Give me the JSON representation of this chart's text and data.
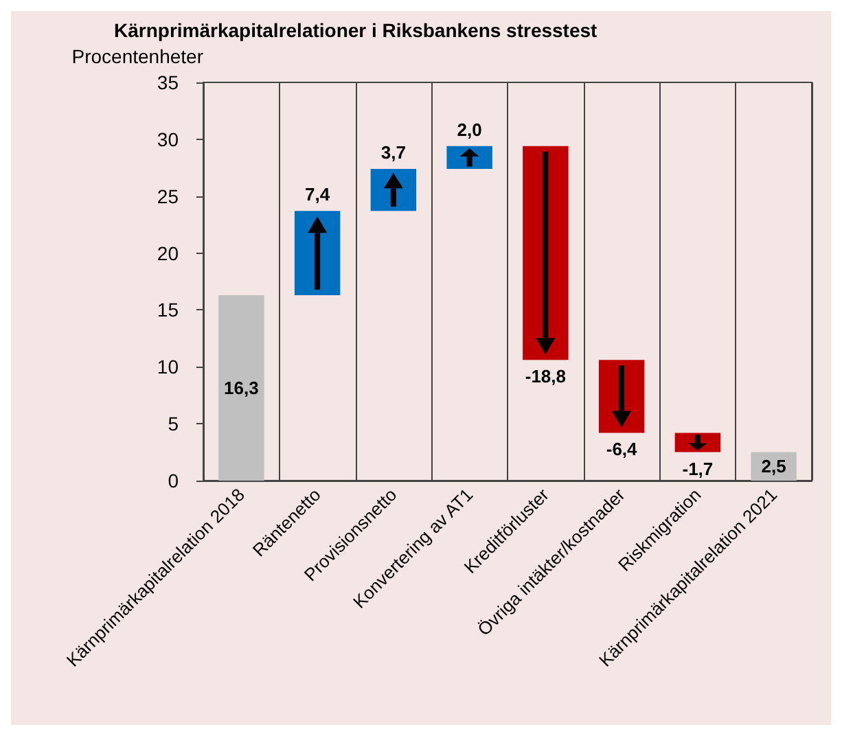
{
  "chart_data": {
    "type": "bar",
    "title": "Kärnprimärkapitalrelationer i Riksbankens stresstest",
    "ylabel": "Procentenheter",
    "categories": [
      "Kärnprimärkapitalrelation 2018",
      "Räntenetto",
      "Provisionsnetto",
      "Konvertering av AT1",
      "Kreditförluster",
      "Övriga intäkter/kostnader",
      "Riskmigration",
      "Kärnprimärkapitalrelation 2021"
    ],
    "values": [
      16.3,
      7.4,
      3.7,
      2.0,
      -18.8,
      -6.4,
      -1.7,
      2.5
    ],
    "base": [
      0,
      16.3,
      23.7,
      27.4,
      29.4,
      10.6,
      4.2,
      0
    ],
    "colors": [
      "#c0c0c0",
      "#0070c0",
      "#0070c0",
      "#0070c0",
      "#c00000",
      "#c00000",
      "#c00000",
      "#c0c0c0"
    ],
    "value_labels": [
      "16,3",
      "7,4",
      "3,7",
      "2,0",
      "-18,8",
      "-6,4",
      "-1,7",
      "2,5"
    ],
    "ylim": [
      0,
      35
    ],
    "yticks": [
      0,
      5,
      10,
      15,
      20,
      25,
      30,
      35
    ],
    "grid": "x"
  }
}
